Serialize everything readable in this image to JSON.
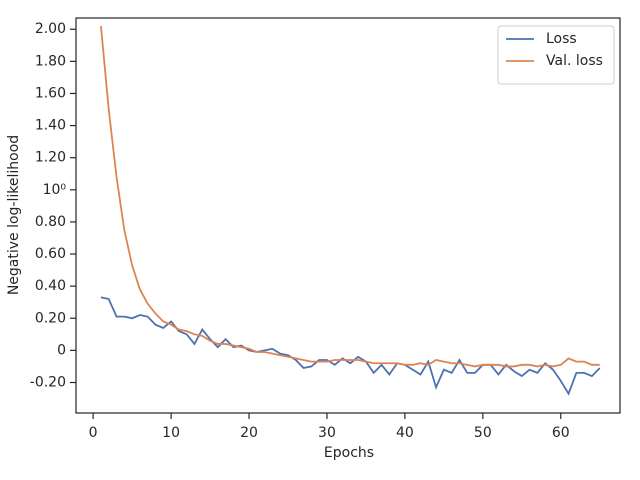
{
  "chart_data": {
    "type": "line",
    "y_label": "Negative log-likelihood",
    "x_label": "Epochs",
    "x": [
      1,
      2,
      3,
      4,
      5,
      6,
      7,
      8,
      9,
      10,
      11,
      12,
      13,
      14,
      15,
      16,
      17,
      18,
      19,
      20,
      21,
      22,
      23,
      24,
      25,
      26,
      27,
      28,
      29,
      30,
      31,
      32,
      33,
      34,
      35,
      36,
      37,
      38,
      39,
      40,
      41,
      42,
      43,
      44,
      45,
      46,
      47,
      48,
      49,
      50,
      51,
      52,
      53,
      54,
      55,
      56,
      57,
      58,
      59,
      60,
      61,
      62,
      63,
      64,
      65
    ],
    "series": [
      {
        "name": "Loss",
        "color": "#4c72b0",
        "values": [
          0.33,
          0.32,
          0.21,
          0.21,
          0.2,
          0.22,
          0.21,
          0.16,
          0.14,
          0.18,
          0.12,
          0.1,
          0.04,
          0.13,
          0.07,
          0.02,
          0.07,
          0.02,
          0.03,
          0.0,
          -0.01,
          0.0,
          0.01,
          -0.02,
          -0.03,
          -0.06,
          -0.11,
          -0.1,
          -0.06,
          -0.06,
          -0.09,
          -0.05,
          -0.08,
          -0.04,
          -0.07,
          -0.14,
          -0.09,
          -0.15,
          -0.08,
          -0.09,
          -0.12,
          -0.15,
          -0.07,
          -0.23,
          -0.12,
          -0.14,
          -0.06,
          -0.14,
          -0.14,
          -0.09,
          -0.09,
          -0.15,
          -0.09,
          -0.13,
          -0.16,
          -0.12,
          -0.14,
          -0.08,
          -0.12,
          -0.19,
          -0.27,
          -0.14,
          -0.14,
          -0.16,
          -0.11
        ]
      },
      {
        "name": "Val. loss",
        "color": "#dd8452",
        "values": [
          2.02,
          1.5,
          1.08,
          0.75,
          0.53,
          0.38,
          0.29,
          0.23,
          0.18,
          0.16,
          0.13,
          0.12,
          0.1,
          0.09,
          0.06,
          0.04,
          0.04,
          0.03,
          0.02,
          0.01,
          -0.01,
          -0.01,
          -0.02,
          -0.03,
          -0.04,
          -0.05,
          -0.06,
          -0.07,
          -0.07,
          -0.07,
          -0.06,
          -0.06,
          -0.06,
          -0.06,
          -0.07,
          -0.08,
          -0.08,
          -0.08,
          -0.08,
          -0.09,
          -0.09,
          -0.08,
          -0.09,
          -0.06,
          -0.07,
          -0.08,
          -0.08,
          -0.09,
          -0.1,
          -0.09,
          -0.09,
          -0.09,
          -0.1,
          -0.1,
          -0.09,
          -0.09,
          -0.1,
          -0.09,
          -0.1,
          -0.09,
          -0.05,
          -0.07,
          -0.07,
          -0.09,
          -0.09
        ]
      }
    ],
    "xlim": [
      -2.2,
      67.6
    ],
    "xticks": [
      0,
      10,
      20,
      30,
      40,
      50,
      60
    ],
    "ylim": [
      -0.39,
      2.07
    ],
    "yticks": [
      {
        "value": -0.2,
        "label": "-0.20"
      },
      0,
      {
        "value": 0.2,
        "label": "0.20"
      },
      {
        "value": 0.4,
        "label": "0.40"
      },
      {
        "value": 0.6,
        "label": "0.60"
      },
      {
        "value": 0.8,
        "label": "0.80"
      },
      {
        "value": 1,
        "label": "10⁰"
      },
      {
        "value": 1.2,
        "label": "1.20"
      },
      {
        "value": 1.4,
        "label": "1.40"
      },
      {
        "value": 1.6,
        "label": "1.60"
      },
      {
        "value": 1.8,
        "label": "1.80"
      },
      {
        "value": 2,
        "label": "2.00"
      }
    ],
    "legend": "upper right"
  }
}
